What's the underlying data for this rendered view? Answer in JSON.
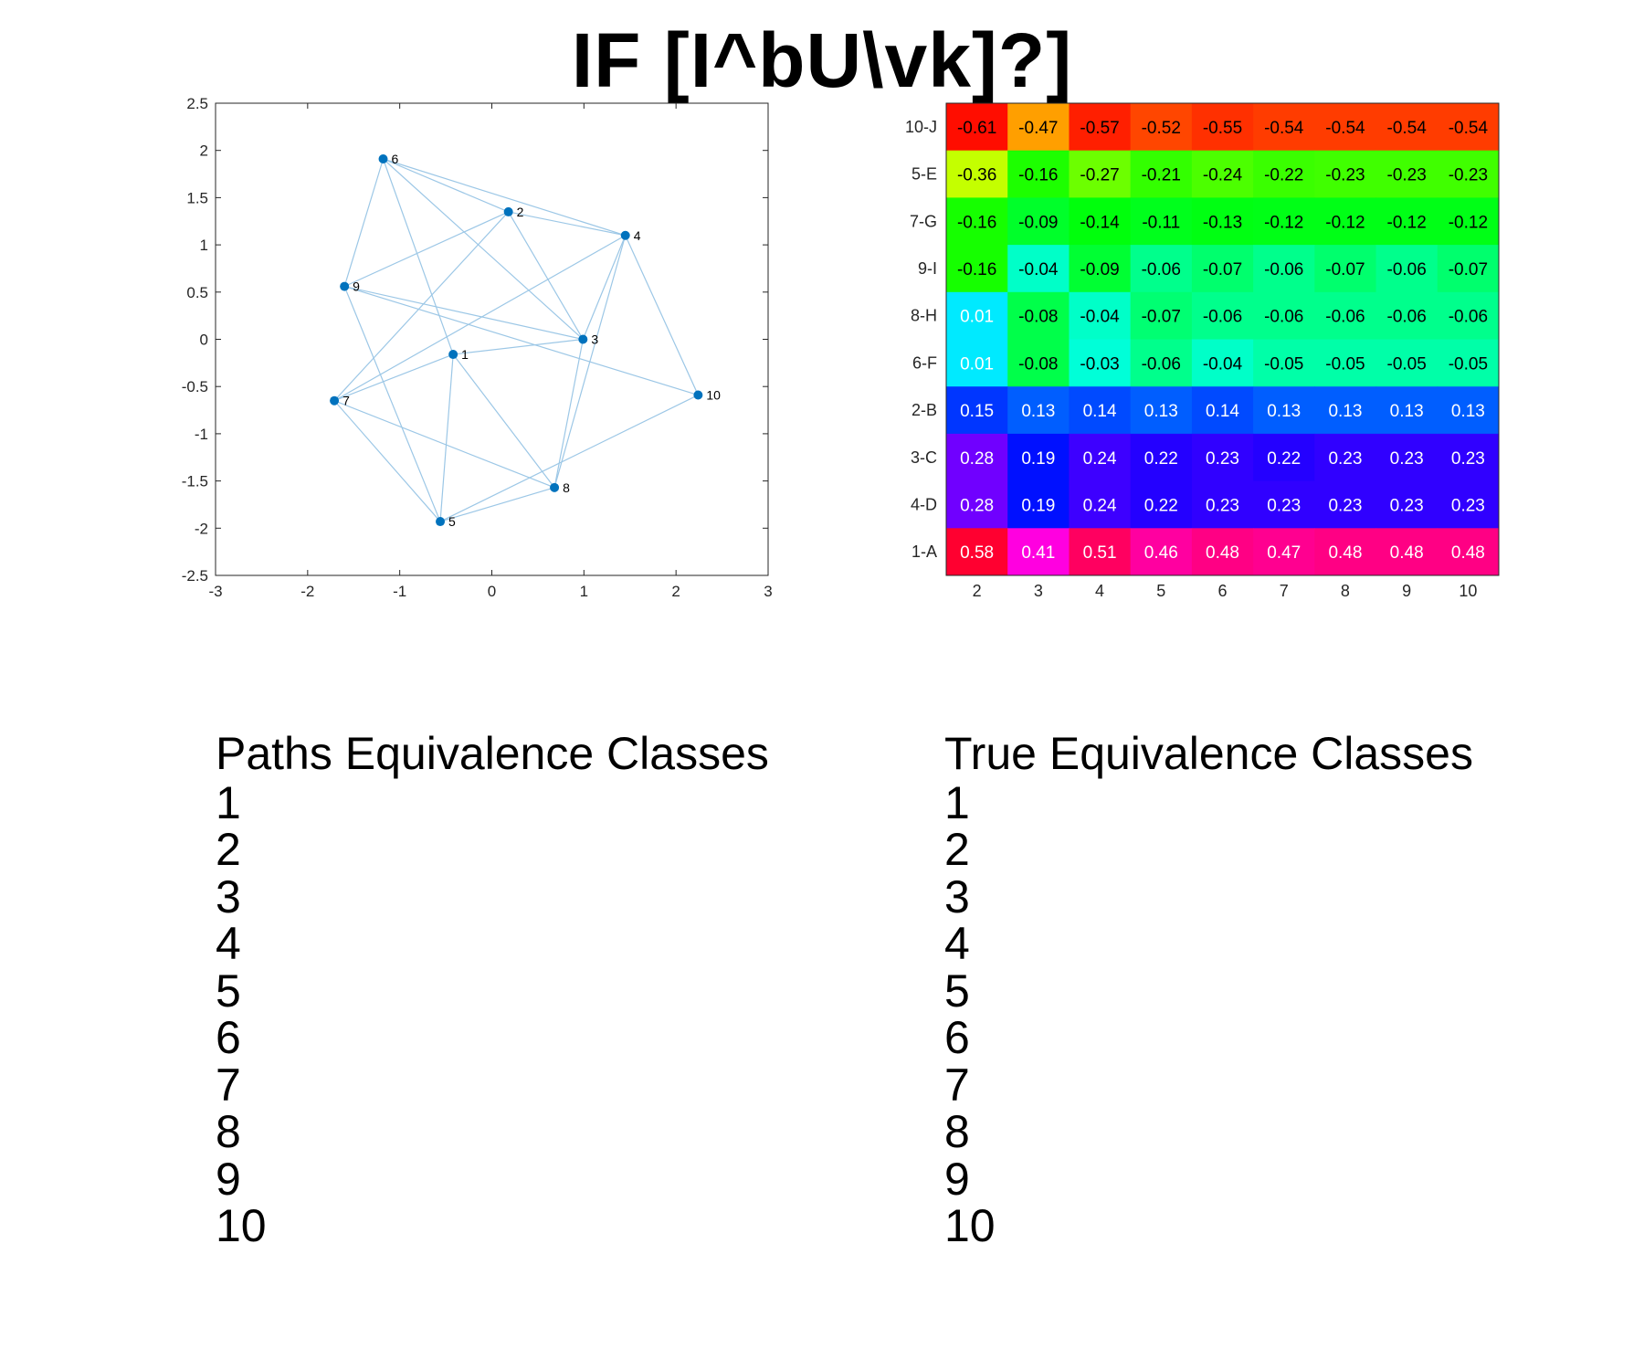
{
  "title": "IF [I^bU\\vk]?]",
  "graph": {
    "x_ticks": [
      "-3",
      "-2",
      "-1",
      "0",
      "1",
      "2",
      "3"
    ],
    "y_ticks": [
      "2.5",
      "2",
      "1.5",
      "1",
      "0.5",
      "0",
      "-0.5",
      "-1",
      "-1.5",
      "-2",
      "-2.5"
    ],
    "xlim": [
      -3,
      3
    ],
    "ylim": [
      -2.5,
      2.5
    ],
    "node_color": "#0072bd",
    "edge_color": "#9cc7e6",
    "nodes": [
      {
        "id": "1",
        "x": -0.42,
        "y": -0.16
      },
      {
        "id": "2",
        "x": 0.18,
        "y": 1.35
      },
      {
        "id": "3",
        "x": 0.99,
        "y": 0.0
      },
      {
        "id": "4",
        "x": 1.45,
        "y": 1.1
      },
      {
        "id": "5",
        "x": -0.56,
        "y": -1.93
      },
      {
        "id": "6",
        "x": -1.18,
        "y": 1.91
      },
      {
        "id": "7",
        "x": -1.71,
        "y": -0.65
      },
      {
        "id": "8",
        "x": 0.68,
        "y": -1.57
      },
      {
        "id": "9",
        "x": -1.6,
        "y": 0.56
      },
      {
        "id": "10",
        "x": 2.24,
        "y": -0.59
      }
    ],
    "edges": [
      [
        "6",
        "2"
      ],
      [
        "6",
        "4"
      ],
      [
        "6",
        "9"
      ],
      [
        "6",
        "1"
      ],
      [
        "6",
        "3"
      ],
      [
        "2",
        "4"
      ],
      [
        "2",
        "9"
      ],
      [
        "2",
        "3"
      ],
      [
        "2",
        "7"
      ],
      [
        "4",
        "3"
      ],
      [
        "4",
        "7"
      ],
      [
        "4",
        "8"
      ],
      [
        "4",
        "10"
      ],
      [
        "9",
        "3"
      ],
      [
        "9",
        "10"
      ],
      [
        "9",
        "5"
      ],
      [
        "1",
        "7"
      ],
      [
        "1",
        "3"
      ],
      [
        "1",
        "5"
      ],
      [
        "1",
        "8"
      ],
      [
        "3",
        "8"
      ],
      [
        "7",
        "8"
      ],
      [
        "7",
        "5"
      ],
      [
        "5",
        "8"
      ],
      [
        "5",
        "10"
      ]
    ]
  },
  "chart_data": {
    "type": "heatmap",
    "title": "",
    "row_labels": [
      "10-J",
      "5-E",
      "7-G",
      "9-I",
      "8-H",
      "6-F",
      "2-B",
      "3-C",
      "4-D",
      "1-A"
    ],
    "col_labels": [
      "2",
      "3",
      "4",
      "5",
      "6",
      "7",
      "8",
      "9",
      "10"
    ],
    "values": [
      [
        "-0.61",
        "-0.47",
        "-0.57",
        "-0.52",
        "-0.55",
        "-0.54",
        "-0.54",
        "-0.54",
        "-0.54"
      ],
      [
        "-0.36",
        "-0.16",
        "-0.27",
        "-0.21",
        "-0.24",
        "-0.22",
        "-0.23",
        "-0.23",
        "-0.23"
      ],
      [
        "-0.16",
        "-0.09",
        "-0.14",
        "-0.11",
        "-0.13",
        "-0.12",
        "-0.12",
        "-0.12",
        "-0.12"
      ],
      [
        "-0.16",
        "-0.04",
        "-0.09",
        "-0.06",
        "-0.07",
        "-0.06",
        "-0.07",
        "-0.06",
        "-0.07"
      ],
      [
        "0.01",
        "-0.08",
        "-0.04",
        "-0.07",
        "-0.06",
        "-0.06",
        "-0.06",
        "-0.06",
        "-0.06"
      ],
      [
        "0.01",
        "-0.08",
        "-0.03",
        "-0.06",
        "-0.04",
        "-0.05",
        "-0.05",
        "-0.05",
        "-0.05"
      ],
      [
        "0.15",
        "0.13",
        "0.14",
        "0.13",
        "0.14",
        "0.13",
        "0.13",
        "0.13",
        "0.13"
      ],
      [
        "0.28",
        "0.19",
        "0.24",
        "0.22",
        "0.23",
        "0.22",
        "0.23",
        "0.23",
        "0.23"
      ],
      [
        "0.28",
        "0.19",
        "0.24",
        "0.22",
        "0.23",
        "0.23",
        "0.23",
        "0.23",
        "0.23"
      ],
      [
        "0.58",
        "0.41",
        "0.51",
        "0.46",
        "0.48",
        "0.47",
        "0.48",
        "0.48",
        "0.48"
      ]
    ],
    "cell_colors": [
      [
        "#ff0d00",
        "#ff9f00",
        "#ff1f00",
        "#ff4600",
        "#ff3000",
        "#ff3c00",
        "#ff3c00",
        "#ff3c00",
        "#ff3c00"
      ],
      [
        "#c4ff00",
        "#1dff00",
        "#6cff00",
        "#33ff00",
        "#4cff00",
        "#3aff00",
        "#40ff00",
        "#40ff00",
        "#40ff00"
      ],
      [
        "#16ff00",
        "#00ff2a",
        "#00ff0c",
        "#00ff1c",
        "#00ff12",
        "#00ff16",
        "#00ff16",
        "#00ff16",
        "#00ff16"
      ],
      [
        "#16ff00",
        "#00ffc8",
        "#00ff33",
        "#00ff8c",
        "#00ff6d",
        "#00ff8c",
        "#00ff6d",
        "#00ff8c",
        "#00ff6d"
      ],
      [
        "#00eaff",
        "#00ff4a",
        "#00ffc8",
        "#00ff72",
        "#00ff8c",
        "#00ff8c",
        "#00ff8c",
        "#00ff8c",
        "#00ff8c"
      ],
      [
        "#00eaff",
        "#00ff4a",
        "#00ffd8",
        "#00ff8c",
        "#00ffc8",
        "#00ffa8",
        "#00ffa8",
        "#00ffa8",
        "#00ffa8"
      ],
      [
        "#0036ff",
        "#005eff",
        "#004aff",
        "#005eff",
        "#004aff",
        "#005eff",
        "#005eff",
        "#005eff",
        "#005eff"
      ],
      [
        "#7000ff",
        "#0010ff",
        "#3d00ff",
        "#2400ff",
        "#3000ff",
        "#2400ff",
        "#3000ff",
        "#3000ff",
        "#3000ff"
      ],
      [
        "#7000ff",
        "#0010ff",
        "#3d00ff",
        "#2400ff",
        "#3000ff",
        "#3000ff",
        "#3000ff",
        "#3000ff",
        "#3000ff"
      ],
      [
        "#ff0030",
        "#ff00e0",
        "#ff0060",
        "#ff00a0",
        "#ff0084",
        "#ff0090",
        "#ff0084",
        "#ff0084",
        "#ff0084"
      ]
    ]
  },
  "paths_list": {
    "heading": "Paths Equivalence Classes",
    "items": [
      "1",
      "2",
      "3",
      "4",
      "5",
      "6",
      "7",
      "8",
      "9",
      "10"
    ]
  },
  "true_list": {
    "heading": "True Equivalence Classes",
    "items": [
      "1",
      "2",
      "3",
      "4",
      "5",
      "6",
      "7",
      "8",
      "9",
      "10"
    ]
  }
}
